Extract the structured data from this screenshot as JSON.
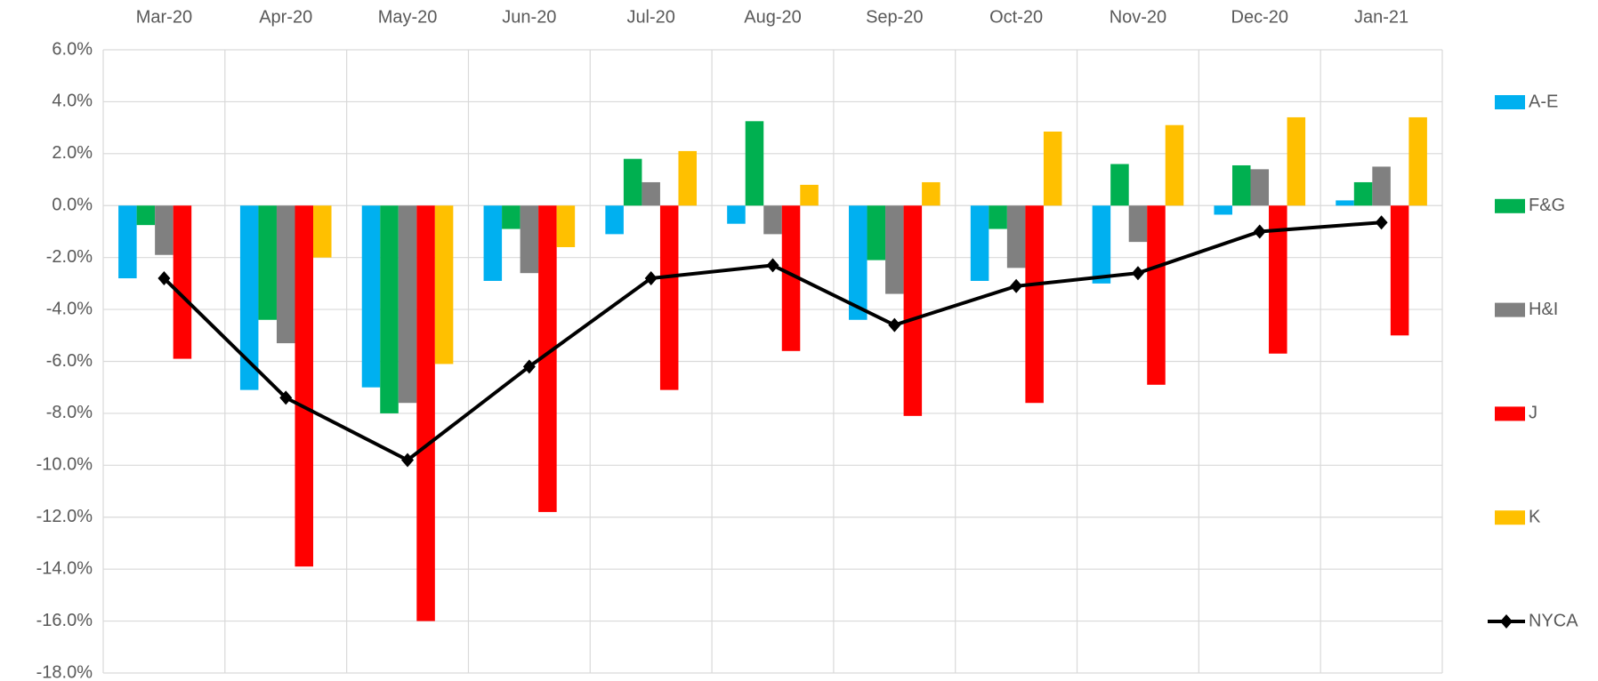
{
  "chart_data": {
    "type": "bar",
    "categories": [
      "Mar-20",
      "Apr-20",
      "May-20",
      "Jun-20",
      "Jul-20",
      "Aug-20",
      "Sep-20",
      "Oct-20",
      "Nov-20",
      "Dec-20",
      "Jan-21"
    ],
    "series": [
      {
        "name": "A-E",
        "color": "#00b0f0",
        "values": [
          -2.8,
          -7.1,
          -7.0,
          -2.9,
          -1.1,
          -0.7,
          -4.4,
          -2.9,
          -3.0,
          -0.35,
          0.2
        ]
      },
      {
        "name": "F&G",
        "color": "#00b050",
        "values": [
          -0.75,
          -4.4,
          -8.0,
          -0.9,
          1.8,
          3.25,
          -2.1,
          -0.9,
          1.6,
          1.55,
          0.9
        ]
      },
      {
        "name": "H&I",
        "color": "#808080",
        "values": [
          -1.9,
          -5.3,
          -7.6,
          -2.6,
          0.9,
          -1.1,
          -3.4,
          -2.4,
          -1.4,
          1.4,
          1.5
        ]
      },
      {
        "name": "J",
        "color": "#ff0000",
        "values": [
          -5.9,
          -13.9,
          -16.0,
          -11.8,
          -7.1,
          -5.6,
          -8.1,
          -7.6,
          -6.9,
          -5.7,
          -5.0
        ]
      },
      {
        "name": "K",
        "color": "#ffc000",
        "values": [
          null,
          -2.0,
          -6.1,
          -1.6,
          2.1,
          0.8,
          0.9,
          2.85,
          3.1,
          3.4,
          3.4
        ]
      },
      {
        "name": "NYCA",
        "color": "#000000",
        "type": "line",
        "values": [
          -2.8,
          -7.4,
          -9.8,
          -6.2,
          -2.8,
          -2.3,
          -4.6,
          -3.1,
          -2.6,
          -1.0,
          -0.65
        ]
      }
    ],
    "ylim": [
      -18,
      6
    ],
    "yticks": [
      {
        "value": -18,
        "label": "-18.0%"
      },
      {
        "value": -16,
        "label": "-16.0%"
      },
      {
        "value": -14,
        "label": "-14.0%"
      },
      {
        "value": -12,
        "label": "-12.0%"
      },
      {
        "value": -10,
        "label": "-10.0%"
      },
      {
        "value": -8,
        "label": "-8.0%"
      },
      {
        "value": -6,
        "label": "-6.0%"
      },
      {
        "value": -4,
        "label": "-4.0%"
      },
      {
        "value": -2,
        "label": "-2.0%"
      },
      {
        "value": 0,
        "label": "0.0%"
      },
      {
        "value": 2,
        "label": "2.0%"
      },
      {
        "value": 4,
        "label": "4.0%"
      },
      {
        "value": 6,
        "label": "6.0%"
      }
    ],
    "grid": true,
    "legend": "right"
  }
}
